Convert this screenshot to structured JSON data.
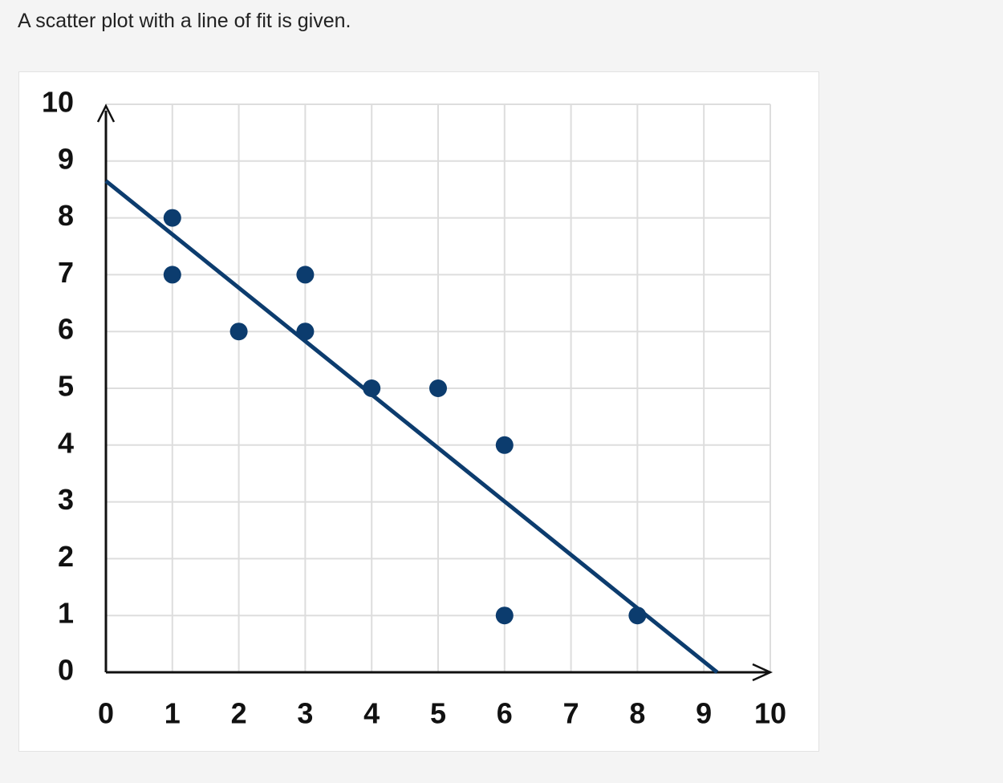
{
  "prompt": "A scatter plot with a line of fit is given.",
  "chart_data": {
    "type": "scatter",
    "x": [
      1,
      1,
      2,
      3,
      3,
      4,
      5,
      6,
      6,
      8
    ],
    "values": [
      8,
      7,
      6,
      7,
      6,
      5,
      5,
      4,
      1,
      1
    ],
    "color": "#0c3c6e",
    "fit_line": {
      "x": [
        0,
        9.2
      ],
      "y": [
        8.65,
        0
      ],
      "color": "#0c3c6e"
    },
    "xlim": [
      0,
      10
    ],
    "ylim": [
      0,
      10
    ],
    "xticks": [
      0,
      1,
      2,
      3,
      4,
      5,
      6,
      7,
      8,
      9,
      10
    ],
    "yticks": [
      0,
      1,
      2,
      3,
      4,
      5,
      6,
      7,
      8,
      9,
      10
    ],
    "grid": true
  }
}
